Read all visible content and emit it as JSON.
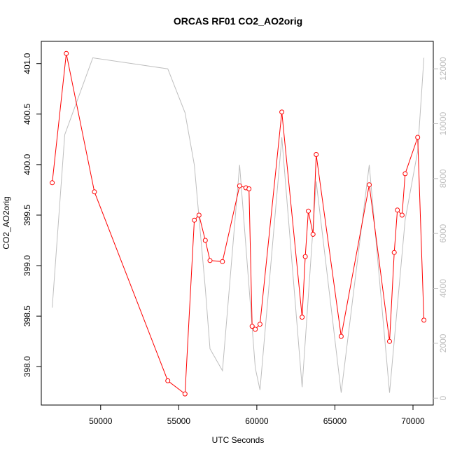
{
  "chart_data": {
    "type": "line",
    "title": "ORCAS RF01 CO2_AO2orig",
    "xlabel": "UTC Seconds",
    "ylabel": "CO2_AO2orig",
    "xlim": [
      46200,
      71300
    ],
    "ylim": [
      397.62,
      401.22
    ],
    "y2lim": [
      -250,
      13000
    ],
    "grid": false,
    "legend": "none",
    "colors": {
      "primary": "#ff0000",
      "secondary": "#bebebe",
      "axis": "#000000"
    },
    "x_ticks": [
      50000,
      55000,
      60000,
      65000,
      70000
    ],
    "x_tick_labels": [
      "50000",
      "55000",
      "60000",
      "65000",
      "70000"
    ],
    "y_ticks": [
      398.0,
      398.5,
      399.0,
      399.5,
      400.0,
      400.5,
      401.0
    ],
    "y_tick_labels": [
      "398.0",
      "398.5",
      "399.0",
      "399.5",
      "400.0",
      "400.5",
      "401.0"
    ],
    "y2_ticks": [
      0,
      2000,
      4000,
      6000,
      8000,
      10000,
      12000
    ],
    "y2_tick_labels": [
      "0",
      "2000",
      "4000",
      "6000",
      "8000",
      "10000",
      "12000"
    ],
    "series": [
      {
        "axis": "left",
        "style": "line-points",
        "color": "#ff0000",
        "x": [
          46900,
          47800,
          49600,
          54300,
          55400,
          56000,
          56300,
          56700,
          57000,
          57800,
          58900,
          59300,
          59500,
          59700,
          59900,
          60200,
          61600,
          62900,
          63100,
          63300,
          63600,
          63800,
          65400,
          67200,
          68500,
          68800,
          69000,
          69300,
          69500,
          70300,
          70700
        ],
        "y": [
          399.82,
          401.1,
          399.73,
          397.86,
          397.73,
          399.45,
          399.5,
          399.25,
          399.05,
          399.04,
          399.79,
          399.77,
          399.76,
          398.4,
          398.37,
          398.42,
          400.52,
          398.49,
          399.09,
          399.54,
          399.31,
          400.1,
          398.3,
          399.8,
          398.25,
          399.13,
          399.55,
          399.5,
          399.91,
          400.27,
          398.46
        ]
      },
      {
        "axis": "right",
        "style": "line",
        "color": "#bebebe",
        "x": [
          46900,
          47700,
          49500,
          54300,
          55400,
          56000,
          56700,
          57000,
          57800,
          58900,
          59900,
          60200,
          61600,
          62900,
          63800,
          65400,
          67200,
          68500,
          69500,
          70300,
          70700
        ],
        "y": [
          3300,
          9600,
          12400,
          12000,
          10400,
          8500,
          4000,
          1800,
          1000,
          8500,
          1100,
          300,
          9500,
          400,
          7900,
          200,
          8500,
          200,
          6500,
          9000,
          12400
        ]
      }
    ]
  }
}
